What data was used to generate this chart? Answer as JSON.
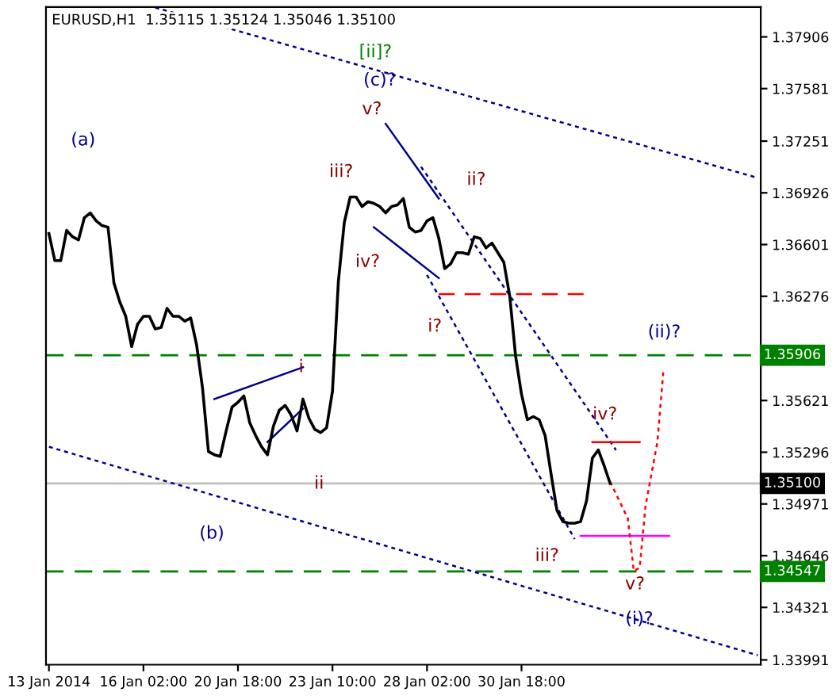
{
  "chart_data": {
    "type": "line",
    "title": "EURUSD,H1  1.35115 1.35124 1.35046 1.35100",
    "categories": [
      "13 Jan 2014",
      null,
      null,
      null,
      null,
      null,
      null,
      null,
      null,
      null,
      null,
      null,
      null,
      null,
      null,
      null,
      "16 Jan 02:00",
      null,
      null,
      null,
      null,
      null,
      null,
      null,
      null,
      null,
      null,
      null,
      null,
      null,
      null,
      null,
      "20 Jan 18:00",
      null,
      null,
      null,
      null,
      null,
      null,
      null,
      null,
      null,
      null,
      null,
      null,
      null,
      null,
      null,
      "23 Jan 10:00",
      null,
      null,
      null,
      null,
      null,
      null,
      null,
      null,
      null,
      null,
      null,
      null,
      null,
      null,
      null,
      "28 Jan 02:00",
      null,
      null,
      null,
      null,
      null,
      null,
      null,
      null,
      null,
      null,
      null,
      null,
      null,
      null,
      null,
      "30 Jan 18:00",
      null,
      null,
      null,
      null,
      null,
      null,
      null,
      null,
      null,
      null,
      null,
      null,
      null,
      null,
      null,
      null,
      null,
      null,
      null,
      null,
      null,
      null,
      null,
      null,
      null,
      null,
      null,
      null,
      null,
      null,
      null,
      null,
      null,
      null,
      null,
      null,
      null,
      null,
      null,
      null
    ],
    "ylim": [
      1.33961,
      1.38094
    ],
    "yticks": [
      1.37906,
      1.37581,
      1.37251,
      1.36926,
      1.36601,
      1.36276,
      1.35621,
      1.35296,
      1.34971,
      1.34646,
      1.34321,
      1.33991
    ],
    "grid": false,
    "legend": false,
    "marker": "none",
    "series": [
      {
        "color": "#000000",
        "line_style": "solid",
        "values": [
          1.3667,
          1.365,
          1.365,
          1.3669,
          1.3665,
          1.3663,
          1.3677,
          1.368,
          1.3675,
          1.3672,
          1.3671,
          1.3636,
          1.3624,
          1.3615,
          1.3596,
          1.361,
          1.3615,
          1.3615,
          1.3607,
          1.3608,
          1.362,
          1.3615,
          1.3615,
          1.3612,
          1.3614,
          1.3597,
          1.357,
          1.353,
          1.3528,
          1.3527,
          1.3543,
          1.3558,
          1.3561,
          1.3565,
          1.3548,
          1.354,
          1.3533,
          1.3528,
          1.3546,
          1.3556,
          1.3559,
          1.3553,
          1.3543,
          1.3563,
          1.3551,
          1.3544,
          1.3542,
          1.3545,
          1.3568,
          1.3637,
          1.3674,
          1.369,
          1.369,
          1.3684,
          1.3687,
          1.3686,
          1.3684,
          1.368,
          1.3684,
          1.3685,
          1.3689,
          1.3671,
          1.3668,
          1.3669,
          1.3675,
          1.3677,
          1.3664,
          1.3645,
          1.3648,
          1.3655,
          1.3655,
          1.3654,
          1.3665,
          1.3664,
          1.3658,
          1.3661,
          1.3655,
          1.3649,
          1.3628,
          1.359,
          1.3566,
          1.355,
          1.3552,
          1.355,
          1.354,
          1.3516,
          1.3493,
          1.3486,
          1.3485,
          1.3485,
          1.3486,
          1.3499,
          1.3526,
          1.3531,
          1.3521,
          1.351,
          null,
          null,
          null,
          null,
          null,
          null,
          null,
          null,
          null,
          null,
          null,
          null,
          null,
          null,
          null,
          null,
          null,
          null,
          null,
          null,
          null,
          null,
          null,
          null,
          null
        ]
      },
      {
        "color": "#00008b",
        "line_style": "dotted",
        "values": [
          null,
          null,
          null,
          null,
          null,
          null,
          null,
          null,
          null,
          null,
          null,
          null,
          null,
          null,
          null,
          null,
          null,
          null,
          1.3809,
          null,
          null,
          null,
          null,
          null,
          null,
          null,
          null,
          null,
          null,
          null,
          null,
          null,
          null,
          null,
          null,
          null,
          null,
          null,
          null,
          null,
          null,
          null,
          null,
          null,
          null,
          null,
          null,
          null,
          null,
          null,
          null,
          null,
          null,
          null,
          null,
          null,
          null,
          null,
          null,
          null,
          null,
          null,
          null,
          null,
          null,
          null,
          null,
          null,
          null,
          null,
          null,
          null,
          null,
          null,
          null,
          null,
          null,
          null,
          null,
          null,
          null,
          null,
          null,
          null,
          null,
          null,
          null,
          null,
          null,
          null,
          null,
          null,
          null,
          null,
          null,
          null,
          null,
          null,
          null,
          null,
          null,
          null,
          null,
          null,
          null,
          null,
          null,
          null,
          null,
          null,
          null,
          null,
          null,
          null,
          null,
          null,
          null,
          null,
          null,
          null,
          1.3702
        ]
      },
      {
        "color": "#00008b",
        "line_style": "dotted",
        "values": [
          1.3533,
          null,
          null,
          null,
          null,
          null,
          null,
          null,
          null,
          null,
          null,
          null,
          null,
          null,
          null,
          null,
          null,
          null,
          null,
          null,
          null,
          null,
          null,
          null,
          null,
          null,
          null,
          null,
          null,
          null,
          null,
          null,
          null,
          null,
          null,
          null,
          null,
          null,
          null,
          null,
          null,
          null,
          null,
          null,
          null,
          null,
          null,
          null,
          null,
          null,
          null,
          null,
          null,
          null,
          null,
          null,
          null,
          null,
          null,
          null,
          null,
          null,
          null,
          null,
          null,
          null,
          null,
          null,
          null,
          null,
          null,
          null,
          null,
          null,
          null,
          null,
          null,
          null,
          null,
          null,
          null,
          null,
          null,
          null,
          null,
          null,
          null,
          null,
          null,
          null,
          null,
          null,
          null,
          null,
          null,
          null,
          null,
          null,
          null,
          null,
          null,
          null,
          null,
          null,
          null,
          null,
          null,
          null,
          null,
          null,
          null,
          null,
          null,
          null,
          null,
          null,
          null,
          null,
          null,
          null,
          1.3402
        ]
      },
      {
        "color": "#00008b",
        "line_style": "solid",
        "values": [
          null,
          null,
          null,
          null,
          null,
          null,
          null,
          null,
          null,
          null,
          null,
          null,
          null,
          null,
          null,
          null,
          null,
          null,
          null,
          null,
          null,
          null,
          null,
          null,
          null,
          null,
          null,
          null,
          null,
          null,
          null,
          null,
          null,
          null,
          null,
          null,
          null,
          null,
          null,
          null,
          null,
          null,
          null,
          null,
          null,
          null,
          null,
          null,
          null,
          null,
          null,
          null,
          null,
          null,
          null,
          null,
          null,
          1.3736,
          null,
          null,
          null,
          null,
          null,
          null,
          null,
          null,
          1.3689,
          null,
          null,
          null,
          null,
          null,
          null,
          null,
          null,
          null,
          null,
          null,
          null,
          null,
          null,
          null,
          null,
          null,
          null,
          null,
          null,
          null,
          null,
          null,
          null,
          null,
          null,
          null,
          null,
          null,
          null,
          null,
          null,
          null,
          null,
          null,
          null,
          null,
          null,
          null,
          null,
          null,
          null,
          null,
          null,
          null,
          null,
          null,
          null,
          null,
          null,
          null,
          null,
          null,
          null
        ]
      },
      {
        "color": "#00008b",
        "line_style": "solid",
        "values": [
          null,
          null,
          null,
          null,
          null,
          null,
          null,
          null,
          null,
          null,
          null,
          null,
          null,
          null,
          null,
          null,
          null,
          null,
          null,
          null,
          null,
          null,
          null,
          null,
          null,
          null,
          null,
          null,
          null,
          null,
          null,
          null,
          null,
          null,
          null,
          null,
          null,
          null,
          null,
          null,
          null,
          null,
          null,
          null,
          null,
          null,
          null,
          null,
          null,
          null,
          null,
          null,
          null,
          null,
          null,
          1.3671,
          null,
          null,
          null,
          null,
          null,
          null,
          null,
          null,
          null,
          null,
          1.3639,
          null,
          null,
          null,
          null,
          null,
          null,
          null,
          null,
          null,
          null,
          null,
          null,
          null,
          null,
          null,
          null,
          null,
          null,
          null,
          null,
          null,
          null,
          null,
          null,
          null,
          null,
          null,
          null,
          null,
          null,
          null,
          null,
          null,
          null,
          null,
          null,
          null,
          null,
          null,
          null,
          null,
          null,
          null,
          null,
          null,
          null,
          null,
          null,
          null,
          null,
          null,
          null,
          null,
          null
        ]
      },
      {
        "color": "#00008b",
        "line_style": "solid",
        "values": [
          null,
          null,
          null,
          null,
          null,
          null,
          null,
          null,
          null,
          null,
          null,
          null,
          null,
          null,
          null,
          null,
          null,
          null,
          null,
          null,
          null,
          null,
          null,
          null,
          null,
          null,
          null,
          null,
          1.3563,
          null,
          null,
          null,
          null,
          null,
          null,
          null,
          null,
          null,
          null,
          null,
          null,
          null,
          null,
          1.3583,
          null,
          null,
          null,
          null,
          null,
          null,
          null,
          null,
          null,
          null,
          null,
          null,
          null,
          null,
          null,
          null,
          null,
          null,
          null,
          null,
          null,
          null,
          null,
          null,
          null,
          null,
          null,
          null,
          null,
          null,
          null,
          null,
          null,
          null,
          null,
          null,
          null,
          null,
          null,
          null,
          null,
          null,
          null,
          null,
          null,
          null,
          null,
          null,
          null,
          null,
          null,
          null,
          null,
          null,
          null,
          null,
          null,
          null,
          null,
          null,
          null,
          null,
          null,
          null,
          null,
          null,
          null,
          null,
          null,
          null,
          null,
          null,
          null,
          null,
          null,
          null,
          null
        ]
      },
      {
        "color": "#00008b",
        "line_style": "solid",
        "values": [
          null,
          null,
          null,
          null,
          null,
          null,
          null,
          null,
          null,
          null,
          null,
          null,
          null,
          null,
          null,
          null,
          null,
          null,
          null,
          null,
          null,
          null,
          null,
          null,
          null,
          null,
          null,
          null,
          null,
          null,
          null,
          null,
          null,
          null,
          null,
          null,
          null,
          1.3536,
          null,
          null,
          null,
          null,
          null,
          1.3557,
          null,
          null,
          null,
          null,
          null,
          null,
          null,
          null,
          null,
          null,
          null,
          null,
          null,
          null,
          null,
          null,
          null,
          null,
          null,
          null,
          null,
          null,
          null,
          null,
          null,
          null,
          null,
          null,
          null,
          null,
          null,
          null,
          null,
          null,
          null,
          null,
          null,
          null,
          null,
          null,
          null,
          null,
          null,
          null,
          null,
          null,
          null,
          null,
          null,
          null,
          null,
          null,
          null,
          null,
          null,
          null,
          null,
          null,
          null,
          null,
          null,
          null,
          null,
          null,
          null,
          null,
          null,
          null,
          null,
          null,
          null,
          null,
          null,
          null,
          null,
          null,
          null
        ]
      },
      {
        "color": "#00008b",
        "line_style": "dotted",
        "values": [
          null,
          null,
          null,
          null,
          null,
          null,
          null,
          null,
          null,
          null,
          null,
          null,
          null,
          null,
          null,
          null,
          null,
          null,
          null,
          null,
          null,
          null,
          null,
          null,
          null,
          null,
          null,
          null,
          null,
          null,
          null,
          null,
          null,
          null,
          null,
          null,
          null,
          null,
          null,
          null,
          null,
          null,
          null,
          null,
          null,
          null,
          null,
          null,
          null,
          null,
          null,
          null,
          null,
          null,
          null,
          null,
          null,
          null,
          null,
          null,
          null,
          null,
          null,
          1.3709,
          null,
          null,
          null,
          null,
          null,
          null,
          null,
          null,
          null,
          null,
          null,
          null,
          null,
          null,
          null,
          null,
          null,
          null,
          null,
          null,
          null,
          null,
          null,
          null,
          null,
          null,
          null,
          null,
          null,
          null,
          null,
          null,
          1.3531,
          null,
          null,
          null,
          null,
          null,
          null,
          null,
          null,
          null,
          null,
          null,
          null,
          null,
          null,
          null,
          null,
          null,
          null,
          null,
          null,
          null,
          null,
          null,
          null
        ]
      },
      {
        "color": "#00008b",
        "line_style": "dotted",
        "values": [
          null,
          null,
          null,
          null,
          null,
          null,
          null,
          null,
          null,
          null,
          null,
          null,
          null,
          null,
          null,
          null,
          null,
          null,
          null,
          null,
          null,
          null,
          null,
          null,
          null,
          null,
          null,
          null,
          null,
          null,
          null,
          null,
          null,
          null,
          null,
          null,
          null,
          null,
          null,
          null,
          null,
          null,
          null,
          null,
          null,
          null,
          null,
          null,
          null,
          null,
          null,
          null,
          null,
          null,
          null,
          null,
          null,
          null,
          null,
          null,
          null,
          null,
          null,
          null,
          1.3641,
          null,
          null,
          null,
          null,
          null,
          null,
          null,
          null,
          null,
          null,
          null,
          null,
          null,
          null,
          null,
          null,
          null,
          null,
          null,
          null,
          null,
          null,
          null,
          null,
          1.3475,
          null,
          null,
          null,
          null,
          null,
          null,
          null,
          null,
          null,
          null,
          null,
          null,
          null,
          null,
          null,
          null,
          null,
          null,
          null,
          null,
          null,
          null,
          null,
          null,
          null,
          null,
          null,
          null,
          null,
          null,
          null
        ]
      },
      {
        "color": "#ff0000",
        "line_style": "dashed",
        "values": [
          null,
          null,
          null,
          null,
          null,
          null,
          null,
          null,
          null,
          null,
          null,
          null,
          null,
          null,
          null,
          null,
          null,
          null,
          null,
          null,
          null,
          null,
          null,
          null,
          null,
          null,
          null,
          null,
          null,
          null,
          null,
          null,
          null,
          null,
          null,
          null,
          null,
          null,
          null,
          null,
          null,
          null,
          null,
          null,
          null,
          null,
          null,
          null,
          null,
          null,
          null,
          null,
          null,
          null,
          null,
          null,
          null,
          null,
          null,
          null,
          null,
          null,
          null,
          null,
          null,
          null,
          1.3629,
          null,
          null,
          null,
          null,
          null,
          null,
          null,
          null,
          null,
          null,
          null,
          null,
          null,
          null,
          null,
          null,
          null,
          null,
          null,
          null,
          null,
          null,
          null,
          null,
          1.3629,
          null,
          null,
          null,
          null,
          null,
          null,
          null,
          null,
          null,
          null,
          null,
          null,
          null,
          null,
          null,
          null,
          null,
          null,
          null,
          null,
          null,
          null,
          null,
          null,
          null,
          null,
          null,
          null,
          null
        ]
      },
      {
        "color": "#ff0000",
        "line_style": "solid",
        "values": [
          null,
          null,
          null,
          null,
          null,
          null,
          null,
          null,
          null,
          null,
          null,
          null,
          null,
          null,
          null,
          null,
          null,
          null,
          null,
          null,
          null,
          null,
          null,
          null,
          null,
          null,
          null,
          null,
          null,
          null,
          null,
          null,
          null,
          null,
          null,
          null,
          null,
          null,
          null,
          null,
          null,
          null,
          null,
          null,
          null,
          null,
          null,
          null,
          null,
          null,
          null,
          null,
          null,
          null,
          null,
          null,
          null,
          null,
          null,
          null,
          null,
          null,
          null,
          null,
          null,
          null,
          null,
          null,
          null,
          null,
          null,
          null,
          null,
          null,
          null,
          null,
          null,
          null,
          null,
          null,
          null,
          null,
          null,
          null,
          null,
          null,
          null,
          null,
          null,
          null,
          null,
          null,
          1.3536,
          null,
          null,
          null,
          null,
          null,
          null,
          null,
          1.3536,
          null,
          null,
          null,
          null,
          null,
          null,
          null,
          null,
          null,
          null,
          null,
          null,
          null,
          null,
          null,
          null,
          null,
          null,
          null,
          null
        ]
      },
      {
        "color": "#ff00ff",
        "line_style": "solid",
        "values": [
          null,
          null,
          null,
          null,
          null,
          null,
          null,
          null,
          null,
          null,
          null,
          null,
          null,
          null,
          null,
          null,
          null,
          null,
          null,
          null,
          null,
          null,
          null,
          null,
          null,
          null,
          null,
          null,
          null,
          null,
          null,
          null,
          null,
          null,
          null,
          null,
          null,
          null,
          null,
          null,
          null,
          null,
          null,
          null,
          null,
          null,
          null,
          null,
          null,
          null,
          null,
          null,
          null,
          null,
          null,
          null,
          null,
          null,
          null,
          null,
          null,
          null,
          null,
          null,
          null,
          null,
          null,
          null,
          null,
          null,
          null,
          null,
          null,
          null,
          null,
          null,
          null,
          null,
          null,
          null,
          null,
          null,
          null,
          null,
          null,
          null,
          null,
          null,
          null,
          null,
          1.3477,
          null,
          null,
          null,
          null,
          null,
          null,
          null,
          null,
          null,
          null,
          null,
          null,
          null,
          null,
          1.3477,
          null,
          null,
          null,
          null,
          null,
          null,
          null,
          null,
          null,
          null,
          null,
          null,
          null,
          null,
          null
        ]
      },
      {
        "color": "#ff0000",
        "line_style": "dotted",
        "values": [
          null,
          null,
          null,
          null,
          null,
          null,
          null,
          null,
          null,
          null,
          null,
          null,
          null,
          null,
          null,
          null,
          null,
          null,
          null,
          null,
          null,
          null,
          null,
          null,
          null,
          null,
          null,
          null,
          null,
          null,
          null,
          null,
          null,
          null,
          null,
          null,
          null,
          null,
          null,
          null,
          null,
          null,
          null,
          null,
          null,
          null,
          null,
          null,
          null,
          null,
          null,
          null,
          null,
          null,
          null,
          null,
          null,
          null,
          null,
          null,
          null,
          null,
          null,
          null,
          null,
          null,
          null,
          null,
          null,
          null,
          null,
          null,
          null,
          null,
          null,
          null,
          null,
          null,
          null,
          null,
          null,
          null,
          null,
          null,
          null,
          null,
          null,
          null,
          null,
          null,
          null,
          null,
          null,
          null,
          null,
          1.3511,
          null,
          null,
          1.3488,
          1.3455,
          1.3457,
          1.3496,
          null,
          1.3536,
          1.358,
          null,
          null,
          null,
          null,
          null,
          null,
          null,
          null,
          null,
          null,
          null,
          null,
          null,
          null,
          null,
          null
        ]
      }
    ],
    "ref_lines": [
      {
        "axis": "y",
        "value": 1.35906,
        "label": "1.35906",
        "color": "#008000",
        "line_style": "dashed"
      },
      {
        "axis": "y",
        "value": 1.34547,
        "label": "1.34547",
        "color": "#008000",
        "line_style": "dashed"
      },
      {
        "axis": "y",
        "value": 1.351,
        "label": "1.35100",
        "color": "#c0c0c0",
        "line_style": "solid"
      }
    ],
    "annotations": [
      "(a)",
      "(b)",
      "[ii]?",
      "(c)?",
      "v?",
      "iii?",
      "iv?",
      "i",
      "ii",
      "ii?",
      "i?",
      "iii?",
      "iv?",
      "(ii)?",
      "v?",
      "(i)?"
    ]
  }
}
